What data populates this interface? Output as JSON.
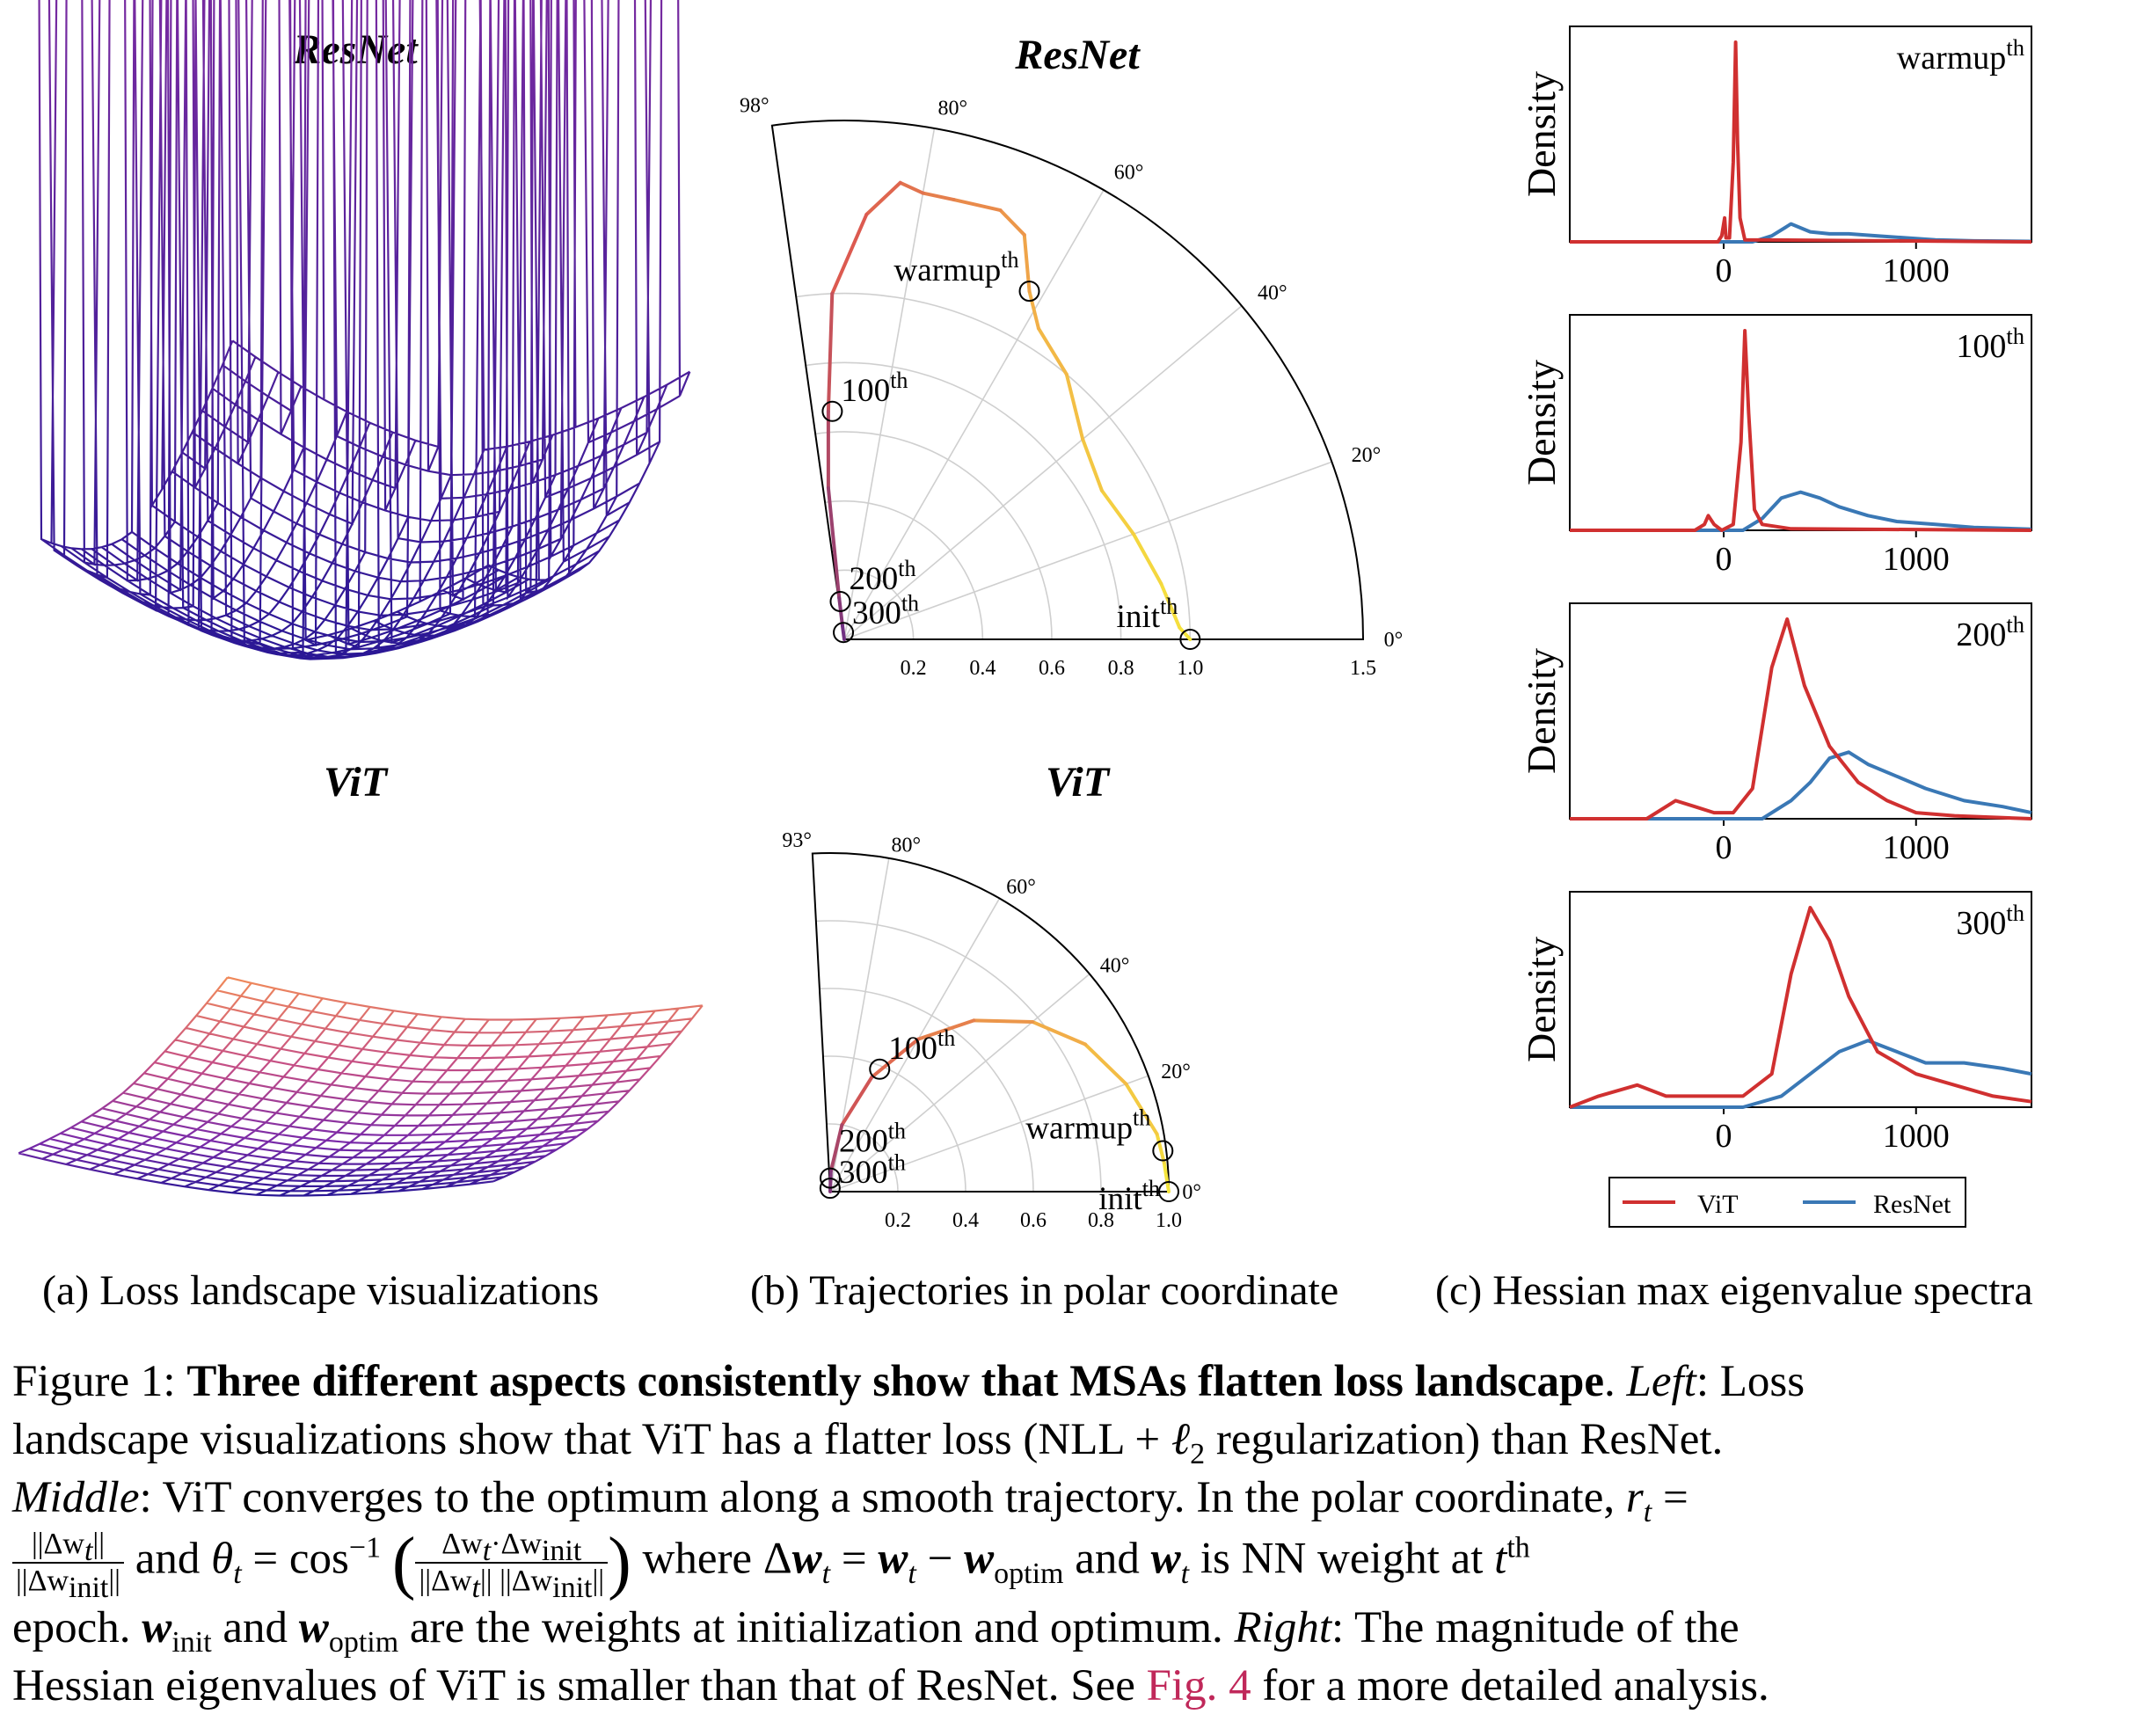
{
  "panels": {
    "a": {
      "title_top": "ResNet",
      "title_bottom": "ViT",
      "caption": "(a) Loss landscape visualizations"
    },
    "b": {
      "title_top": "ResNet",
      "title_bottom": "ViT",
      "caption": "(b) Trajectories in polar coordinate"
    },
    "c": {
      "caption": "(c) Hessian max eigenvalue spectra"
    }
  },
  "chart_data": [
    {
      "type": "polar",
      "id": "trajectory-resnet",
      "title": "ResNet",
      "theta_max_deg": 98,
      "r_max": 1.5,
      "angle_ticks": [
        "98°",
        "80°",
        "60°",
        "40°",
        "20°",
        "0°"
      ],
      "radial_ticks": [
        "0.2",
        "0.4",
        "0.6",
        "0.8",
        "1.0",
        "1.5"
      ],
      "trajectory": [
        {
          "theta": 0,
          "r": 1.0
        },
        {
          "theta": 2,
          "r": 0.97
        },
        {
          "theta": 10,
          "r": 0.93
        },
        {
          "theta": 20,
          "r": 0.89
        },
        {
          "theta": 30,
          "r": 0.86
        },
        {
          "theta": 40,
          "r": 0.9
        },
        {
          "theta": 50,
          "r": 1.0
        },
        {
          "theta": 58,
          "r": 1.06
        },
        {
          "theta": 62,
          "r": 1.14
        },
        {
          "theta": 66,
          "r": 1.28
        },
        {
          "theta": 70,
          "r": 1.32
        },
        {
          "theta": 76,
          "r": 1.31
        },
        {
          "theta": 80,
          "r": 1.31
        },
        {
          "theta": 83,
          "r": 1.33
        },
        {
          "theta": 87,
          "r": 1.23
        },
        {
          "theta": 92,
          "r": 1.0
        },
        {
          "theta": 94,
          "r": 0.66
        },
        {
          "theta": 96,
          "r": 0.44
        },
        {
          "theta": 97,
          "r": 0.12
        },
        {
          "theta": 97.5,
          "r": 0.04
        },
        {
          "theta": 98,
          "r": 0.0
        }
      ],
      "annotations": [
        {
          "label": "warmup",
          "sup": "th",
          "theta": 62,
          "r": 1.14
        },
        {
          "label": "100",
          "sup": "th",
          "theta": 93,
          "r": 0.66
        },
        {
          "label": "200",
          "sup": "th",
          "theta": 96,
          "r": 0.11
        },
        {
          "label": "300",
          "sup": "th",
          "theta": 97,
          "r": 0.02
        },
        {
          "label": "init",
          "sup": "th",
          "theta": 0,
          "r": 1.0
        }
      ]
    },
    {
      "type": "polar",
      "id": "trajectory-vit",
      "title": "ViT",
      "theta_max_deg": 93,
      "r_max": 1.0,
      "angle_ticks": [
        "93°",
        "80°",
        "60°",
        "40°",
        "20°",
        "0°"
      ],
      "radial_ticks": [
        "0.2",
        "0.4",
        "0.6",
        "0.8",
        "1.0"
      ],
      "trajectory": [
        {
          "theta": 0,
          "r": 1.0
        },
        {
          "theta": 5,
          "r": 0.99
        },
        {
          "theta": 10,
          "r": 0.98
        },
        {
          "theta": 20,
          "r": 0.93
        },
        {
          "theta": 30,
          "r": 0.87
        },
        {
          "theta": 40,
          "r": 0.78
        },
        {
          "theta": 50,
          "r": 0.66
        },
        {
          "theta": 60,
          "r": 0.52
        },
        {
          "theta": 70,
          "r": 0.36
        },
        {
          "theta": 80,
          "r": 0.2
        },
        {
          "theta": 88,
          "r": 0.06
        },
        {
          "theta": 93,
          "r": 0.0
        }
      ],
      "annotations": [
        {
          "label": "100",
          "sup": "th",
          "theta": 68,
          "r": 0.39
        },
        {
          "label": "200",
          "sup": "th",
          "theta": 90,
          "r": 0.04
        },
        {
          "label": "300",
          "sup": "th",
          "theta": 92,
          "r": 0.01
        },
        {
          "label": "warmup",
          "sup": "th",
          "theta": 7,
          "r": 0.99
        },
        {
          "label": "init",
          "sup": "th",
          "theta": 0,
          "r": 1.0
        }
      ]
    },
    {
      "type": "density",
      "id": "hessian-spectra",
      "ylabel": "Density",
      "x_range": [
        -800,
        1600
      ],
      "x_ticks": [
        0,
        1000
      ],
      "series_colors": {
        "ViT": "#d03030",
        "ResNet": "#3a78b5"
      },
      "legend": [
        "ViT",
        "ResNet"
      ],
      "subplots": [
        {
          "label": "warmup",
          "sup": "th",
          "ViT": [
            [
              -800,
              0
            ],
            [
              -30,
              0
            ],
            [
              -10,
              0.03
            ],
            [
              5,
              0.12
            ],
            [
              12,
              0.02
            ],
            [
              30,
              0.02
            ],
            [
              50,
              0.4
            ],
            [
              62,
              1.0
            ],
            [
              72,
              0.5
            ],
            [
              85,
              0.12
            ],
            [
              110,
              0.01
            ],
            [
              1600,
              0
            ]
          ],
          "ResNet": [
            [
              -800,
              0
            ],
            [
              150,
              0
            ],
            [
              250,
              0.03
            ],
            [
              350,
              0.09
            ],
            [
              450,
              0.05
            ],
            [
              550,
              0.04
            ],
            [
              650,
              0.04
            ],
            [
              800,
              0.03
            ],
            [
              950,
              0.02
            ],
            [
              1100,
              0.01
            ],
            [
              1300,
              0.005
            ],
            [
              1600,
              0.002
            ]
          ]
        },
        {
          "label": "100",
          "sup": "th",
          "ViT": [
            [
              -800,
              0
            ],
            [
              -150,
              0
            ],
            [
              -100,
              0.02
            ],
            [
              -80,
              0.05
            ],
            [
              -50,
              0.02
            ],
            [
              -10,
              0.0
            ],
            [
              50,
              0.02
            ],
            [
              90,
              0.3
            ],
            [
              110,
              0.68
            ],
            [
              130,
              0.4
            ],
            [
              160,
              0.07
            ],
            [
              200,
              0.02
            ],
            [
              350,
              0.005
            ],
            [
              1600,
              0
            ]
          ],
          "ResNet": [
            [
              -800,
              0
            ],
            [
              100,
              0
            ],
            [
              200,
              0.04
            ],
            [
              300,
              0.11
            ],
            [
              400,
              0.13
            ],
            [
              500,
              0.11
            ],
            [
              600,
              0.08
            ],
            [
              750,
              0.05
            ],
            [
              900,
              0.03
            ],
            [
              1100,
              0.02
            ],
            [
              1300,
              0.01
            ],
            [
              1600,
              0.004
            ]
          ]
        },
        {
          "label": "200",
          "sup": "th",
          "ViT": [
            [
              -800,
              0
            ],
            [
              -400,
              0
            ],
            [
              -250,
              0.03
            ],
            [
              -150,
              0.02
            ],
            [
              -50,
              0.01
            ],
            [
              50,
              0.01
            ],
            [
              150,
              0.05
            ],
            [
              250,
              0.25
            ],
            [
              330,
              0.33
            ],
            [
              420,
              0.22
            ],
            [
              550,
              0.12
            ],
            [
              700,
              0.06
            ],
            [
              850,
              0.03
            ],
            [
              1000,
              0.01
            ],
            [
              1200,
              0.005
            ],
            [
              1600,
              0
            ]
          ],
          "ResNet": [
            [
              -800,
              0
            ],
            [
              200,
              0
            ],
            [
              350,
              0.03
            ],
            [
              450,
              0.06
            ],
            [
              550,
              0.1
            ],
            [
              650,
              0.11
            ],
            [
              750,
              0.09
            ],
            [
              900,
              0.07
            ],
            [
              1050,
              0.05
            ],
            [
              1250,
              0.03
            ],
            [
              1450,
              0.02
            ],
            [
              1600,
              0.01
            ]
          ]
        },
        {
          "label": "300",
          "sup": "th",
          "ViT": [
            [
              -800,
              0
            ],
            [
              -650,
              0.01
            ],
            [
              -450,
              0.02
            ],
            [
              -300,
              0.01
            ],
            [
              -100,
              0.01
            ],
            [
              100,
              0.01
            ],
            [
              250,
              0.03
            ],
            [
              350,
              0.12
            ],
            [
              450,
              0.18
            ],
            [
              550,
              0.15
            ],
            [
              650,
              0.1
            ],
            [
              800,
              0.05
            ],
            [
              1000,
              0.03
            ],
            [
              1200,
              0.02
            ],
            [
              1400,
              0.01
            ],
            [
              1600,
              0.005
            ]
          ],
          "ResNet": [
            [
              -800,
              0
            ],
            [
              100,
              0
            ],
            [
              300,
              0.01
            ],
            [
              450,
              0.03
            ],
            [
              600,
              0.05
            ],
            [
              750,
              0.06
            ],
            [
              900,
              0.05
            ],
            [
              1050,
              0.04
            ],
            [
              1250,
              0.04
            ],
            [
              1450,
              0.035
            ],
            [
              1600,
              0.03
            ]
          ]
        }
      ]
    }
  ],
  "caption": {
    "line1": {
      "fig": "Figure 1: ",
      "bold": "Three different aspects consistently show that MSAs flatten loss landscape",
      "dot": ". ",
      "left": "Left",
      "rest": ": Loss"
    },
    "line2": {
      "text": "landscape visualizations show that ViT has a flatter loss (NLL + ",
      "ell": "ℓ",
      "ell_sub": "2",
      "rest": " regularization) than ResNet."
    },
    "line3": {
      "middle": "Middle",
      "text": ": ViT converges to the optimum along a smooth trajectory. In the polar coordinate, ",
      "r": "r",
      "t": "t",
      "eq": " ="
    },
    "line4": {
      "frac1_num": "||Δw",
      "frac1_num_sub": "t",
      "frac1_num_end": "||",
      "frac1_den": "||Δw",
      "frac1_den_sub": "init",
      "frac1_den_end": "||",
      "and": " and ",
      "theta": "θ",
      "t": "t",
      "eq": " = cos",
      "inv": "−1",
      "frac2_num": "Δw",
      "frac2_num_sub": "t",
      "frac2_num_mid": "·Δw",
      "frac2_num_sub2": "init",
      "frac2_den": "||Δw",
      "frac2_den_sub": "t",
      "frac2_den_mid": "|| ||Δw",
      "frac2_den_sub2": "init",
      "frac2_den_end": "||",
      "where": " where Δ",
      "w": "w",
      "t2": "t",
      "eq2": " = ",
      "w2": "w",
      "t3": "t",
      "minus": " − ",
      "w3": "w",
      "optim": "optim",
      "and2": " and ",
      "w4": "w",
      "t4": "t",
      "rest": " is NN weight at ",
      "t5": "t",
      "th": "th"
    },
    "line5": {
      "text": "epoch. ",
      "w": "w",
      "init": "init",
      "and": " and ",
      "w2": "w",
      "optim": "optim",
      "mid": " are the weights at initialization and optimum. ",
      "right": "Right",
      "rest": ": The magnitude of the"
    },
    "line6": {
      "text": "Hessian eigenvalues of ViT is smaller than that of ResNet. See ",
      "link": "Fig. 4",
      "rest": " for a more detailed analysis."
    }
  }
}
